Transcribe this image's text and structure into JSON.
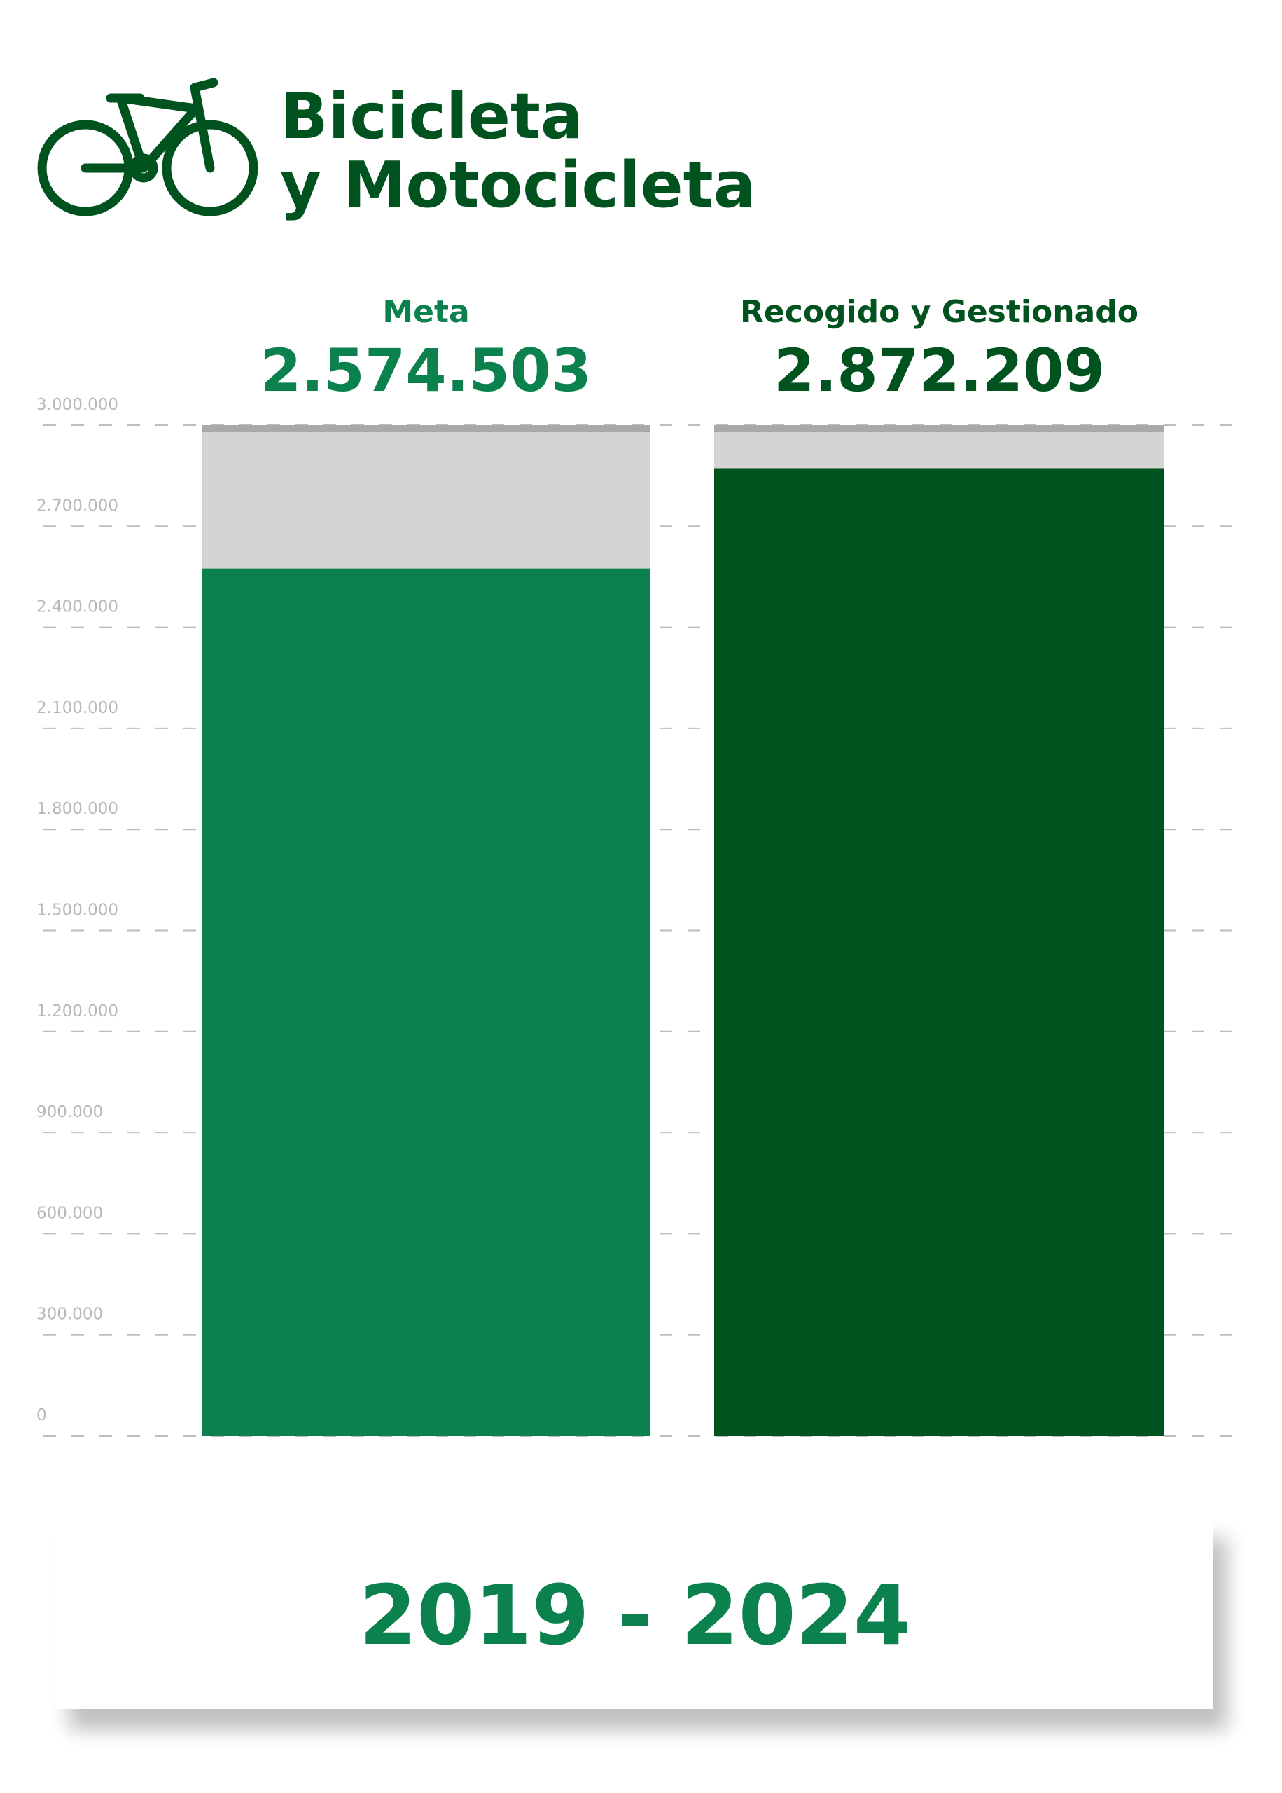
{
  "chart_data": {
    "type": "bar",
    "title": [
      "Bicicleta",
      "y Motocicleta"
    ],
    "categories": [
      "Meta",
      "Recogido y Gestionado"
    ],
    "values": [
      2574503,
      2872209
    ],
    "value_labels": [
      "2.574.503",
      "2.872.209"
    ],
    "colors": [
      "#0b814d",
      "#00521f"
    ],
    "ylim": [
      0,
      3000000
    ],
    "yticks": [
      0,
      {
        "value": 300000,
        "label": "300.000"
      },
      {
        "value": 600000,
        "label": "600.000"
      },
      {
        "value": 900000,
        "label": "900.000"
      },
      {
        "value": 1200000,
        "label": "1.200.000"
      },
      {
        "value": 1500000,
        "label": "1.500.000"
      },
      {
        "value": 1800000,
        "label": "1.800.000"
      },
      {
        "value": 2100000,
        "label": "2.100.000"
      },
      {
        "value": 2400000,
        "label": "2.400.000"
      },
      {
        "value": 2700000,
        "label": "2.700.000"
      },
      {
        "value": 3000000,
        "label": "3.000.000"
      }
    ],
    "grid": true,
    "footer": "2019 - 2024"
  }
}
